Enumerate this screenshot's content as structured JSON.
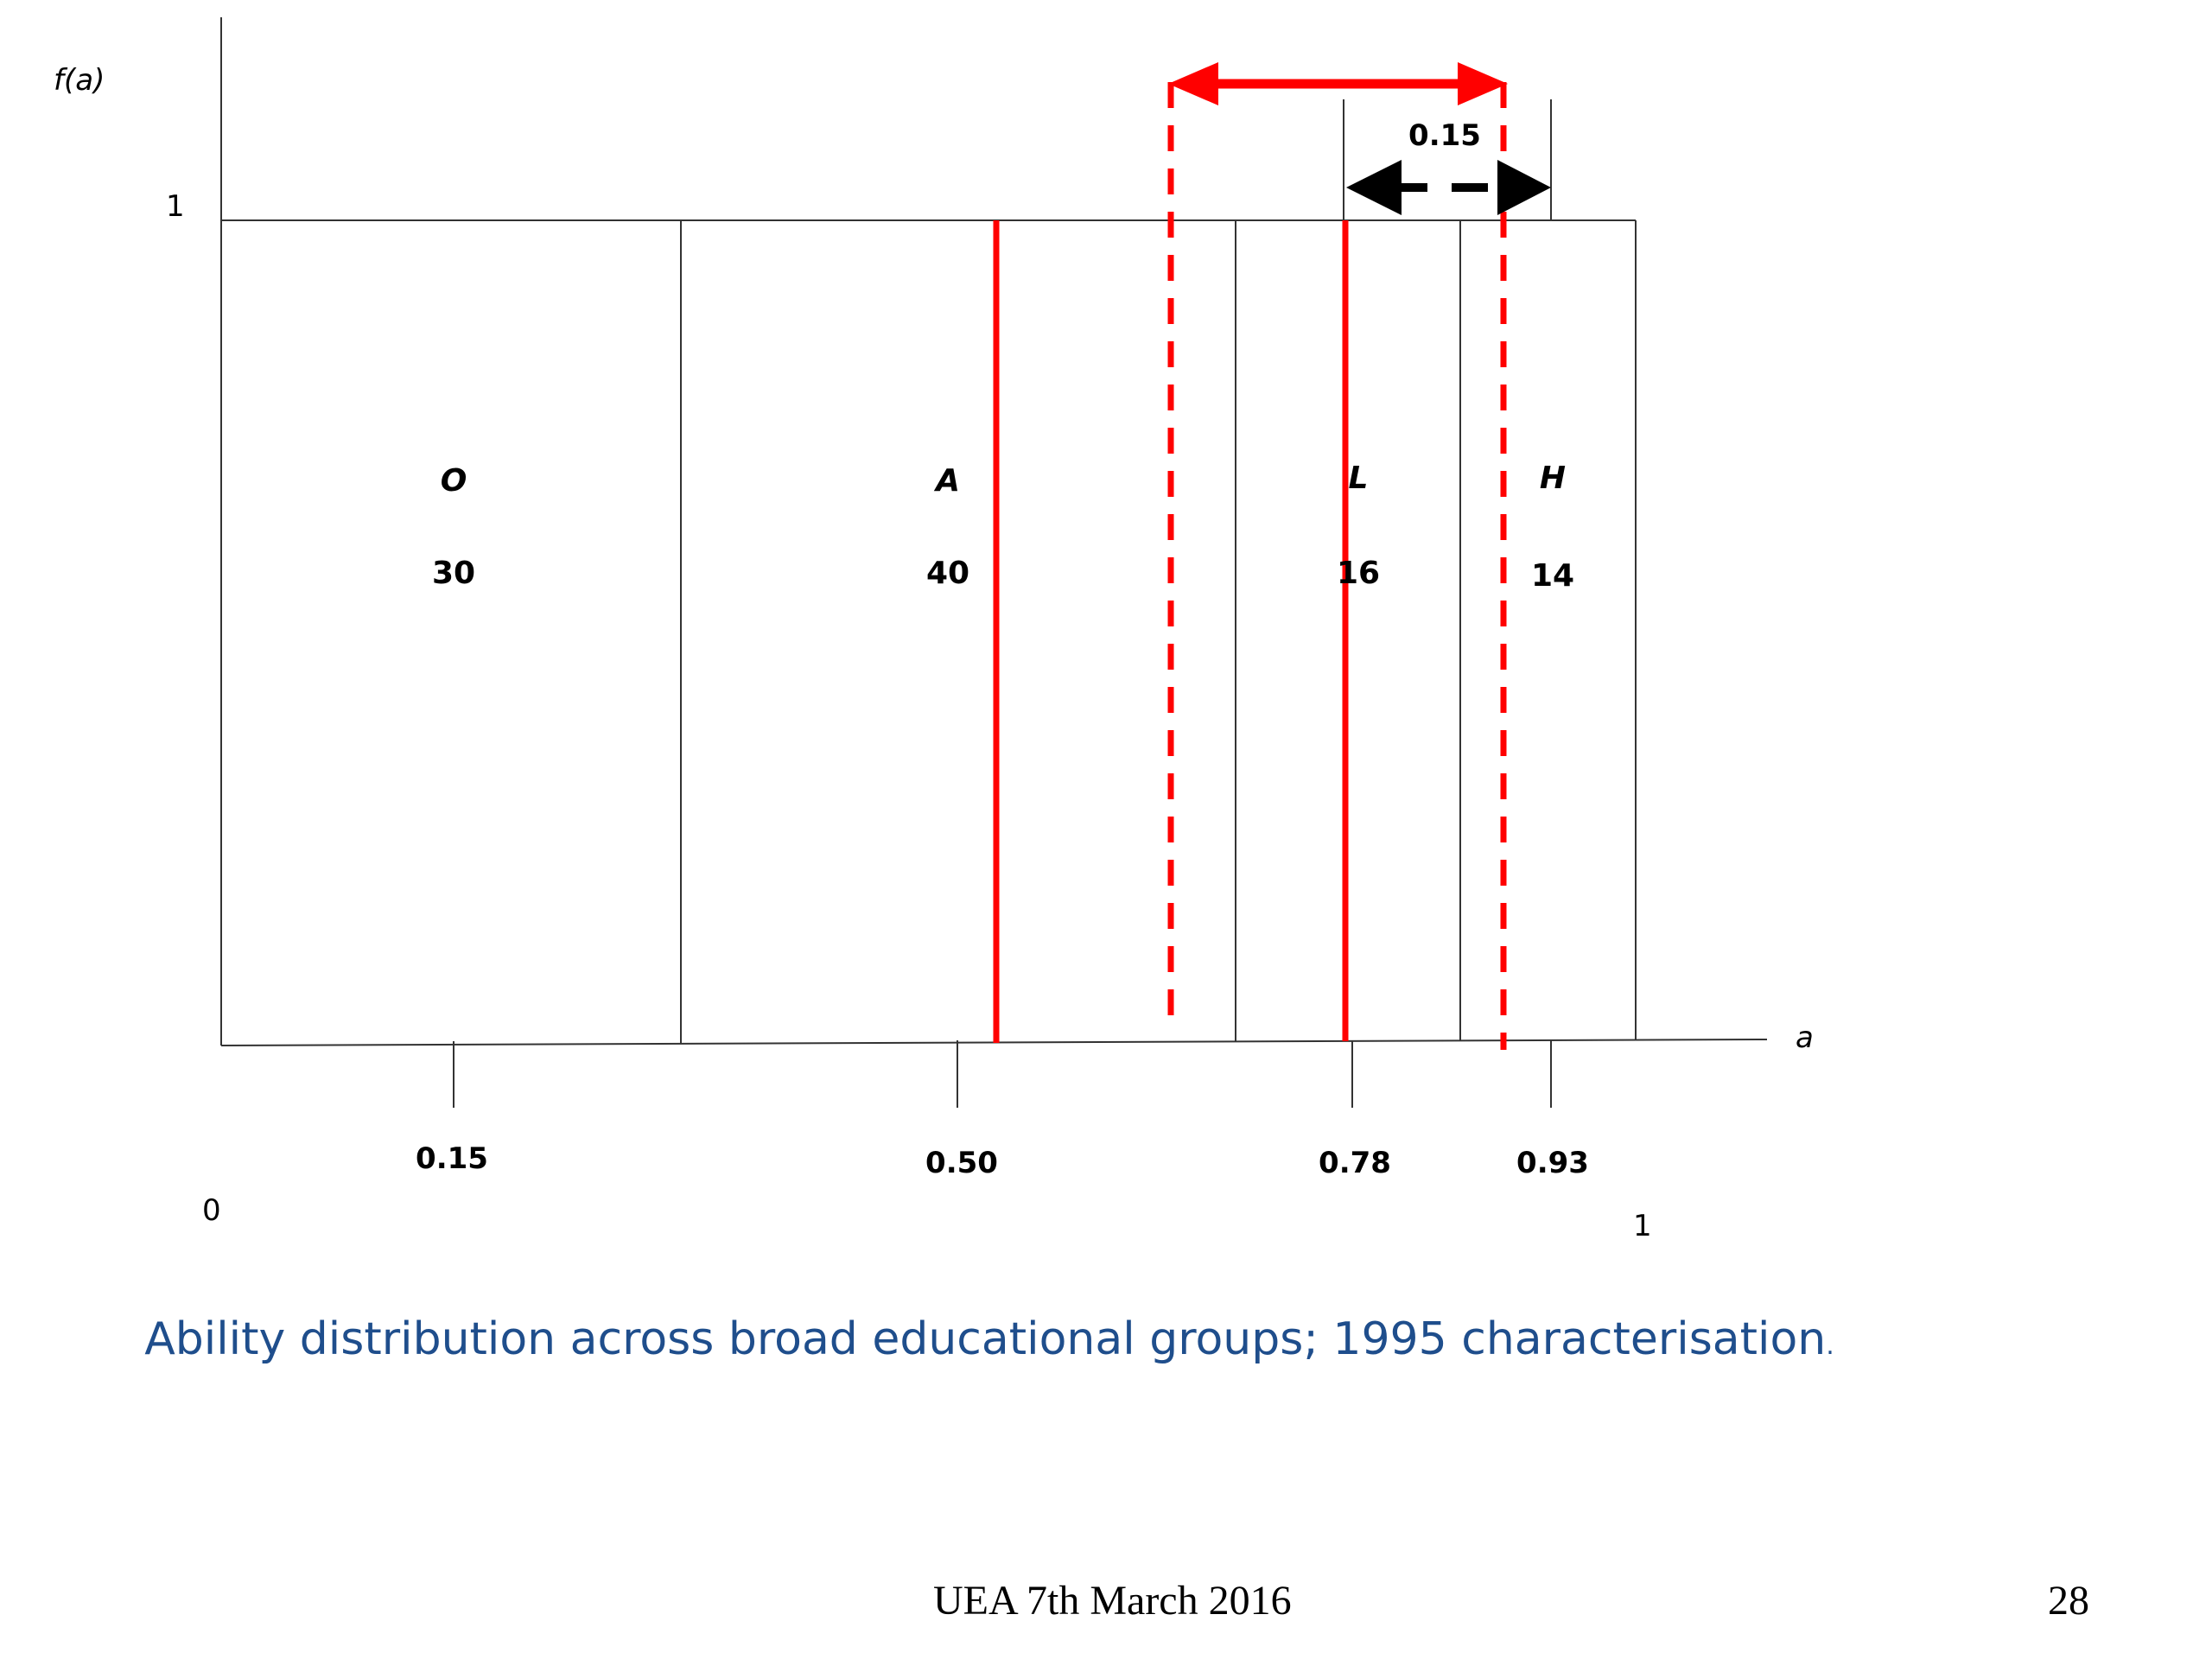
{
  "diagram": {
    "y_axis_label": "f(a)",
    "x_axis_label": "a",
    "y_tick_top": "1",
    "origin_label": "0",
    "x_end_label": "1",
    "groups": [
      {
        "letter": "O",
        "value": "30"
      },
      {
        "letter": "A",
        "value": "40"
      },
      {
        "letter": "L",
        "value": "16"
      },
      {
        "letter": "H",
        "value": "14"
      }
    ],
    "ticks": [
      "0.15",
      "0.50",
      "0.78",
      "0.93"
    ],
    "shift_label": "0.15",
    "colors": {
      "accent_red": "#ff0000",
      "line": "#333333",
      "caption_blue": "#1f4e8c"
    }
  },
  "caption": {
    "text": "Ability distribution across broad educational groups; 1995 characterisation",
    "trailing": "."
  },
  "footer": {
    "center": "UEA 7th March 2016",
    "page_number": "28"
  }
}
